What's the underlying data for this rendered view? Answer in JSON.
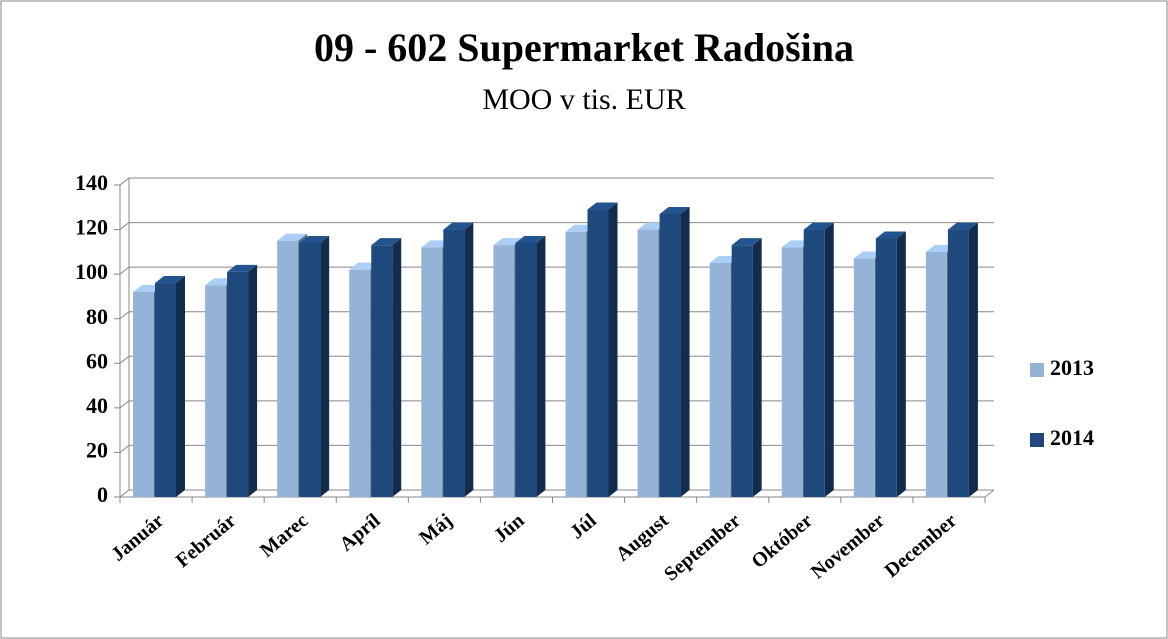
{
  "chart_data": {
    "type": "bar3d",
    "title": "09 - 602 Supermarket Radošina",
    "subtitle": "MOO v tis. EUR",
    "categories": [
      "Január",
      "Február",
      "Marec",
      "Apríl",
      "Máj",
      "Jún",
      "Júl",
      "August",
      "September",
      "Október",
      "November",
      "December"
    ],
    "series": [
      {
        "name": "2013",
        "color": "#95b3d7",
        "values": [
          92,
          95,
          115,
          102,
          112,
          113,
          119,
          120,
          105,
          112,
          107,
          110
        ]
      },
      {
        "name": "2014",
        "color": "#1f497d",
        "values": [
          96,
          101,
          114,
          113,
          120,
          114,
          129,
          127,
          113,
          120,
          116,
          120
        ]
      }
    ],
    "ylim": [
      0,
      140
    ],
    "yticks": [
      0,
      20,
      40,
      60,
      80,
      100,
      120,
      140
    ],
    "grid": true,
    "legend": "right"
  }
}
